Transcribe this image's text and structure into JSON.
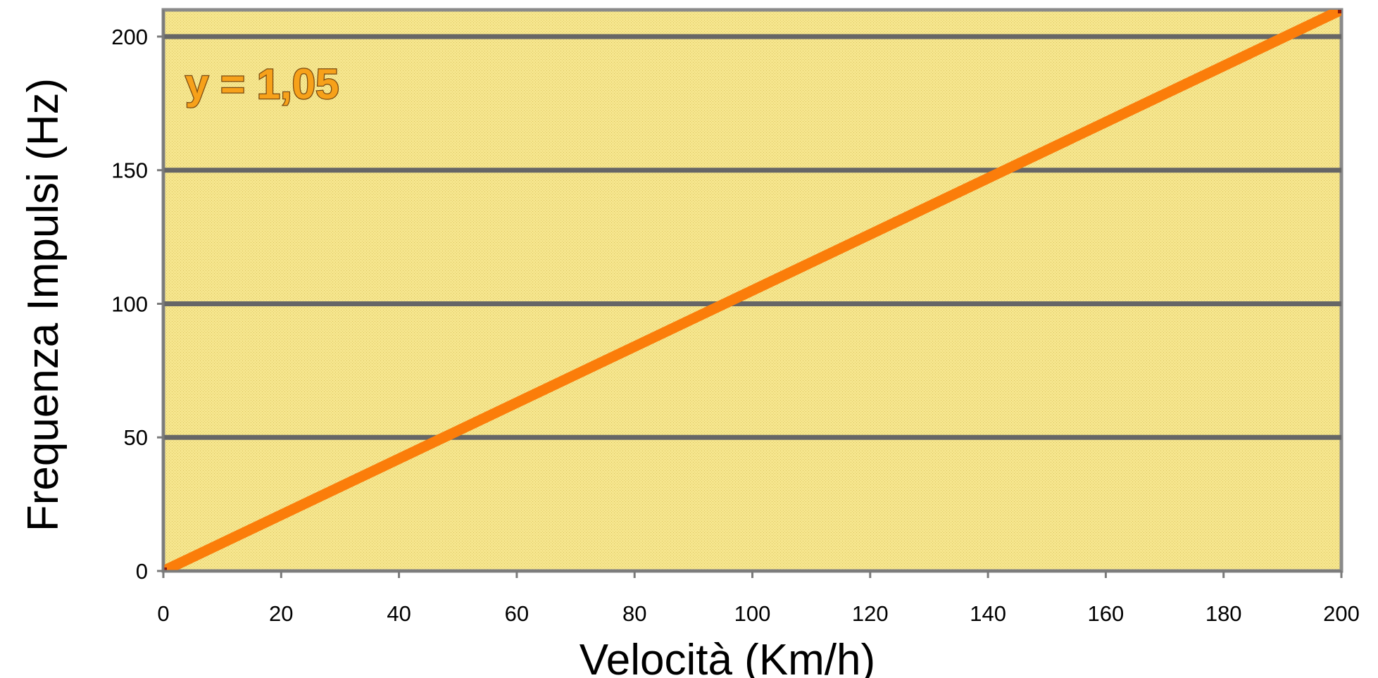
{
  "chart_data": {
    "type": "line",
    "title": "",
    "xlabel": "Velocità (Km/h)",
    "ylabel": "Frequenza Impulsi (Hz)",
    "xlim": [
      0,
      200
    ],
    "ylim": [
      0,
      210
    ],
    "x_ticks": [
      "0",
      "20",
      "40",
      "60",
      "80",
      "100",
      "120",
      "140",
      "160",
      "180",
      "200"
    ],
    "y_ticks": [
      "0",
      "50",
      "100",
      "150",
      "200"
    ],
    "grid": "horizontal",
    "annotation": "y = 1,05",
    "series": [
      {
        "x": [
          0,
          200
        ],
        "y": [
          0,
          210
        ]
      }
    ],
    "colors": {
      "plot_background": "#f5e58a",
      "line": "#fb7d0a",
      "gridline": "#666666",
      "frame": "#888888"
    }
  }
}
